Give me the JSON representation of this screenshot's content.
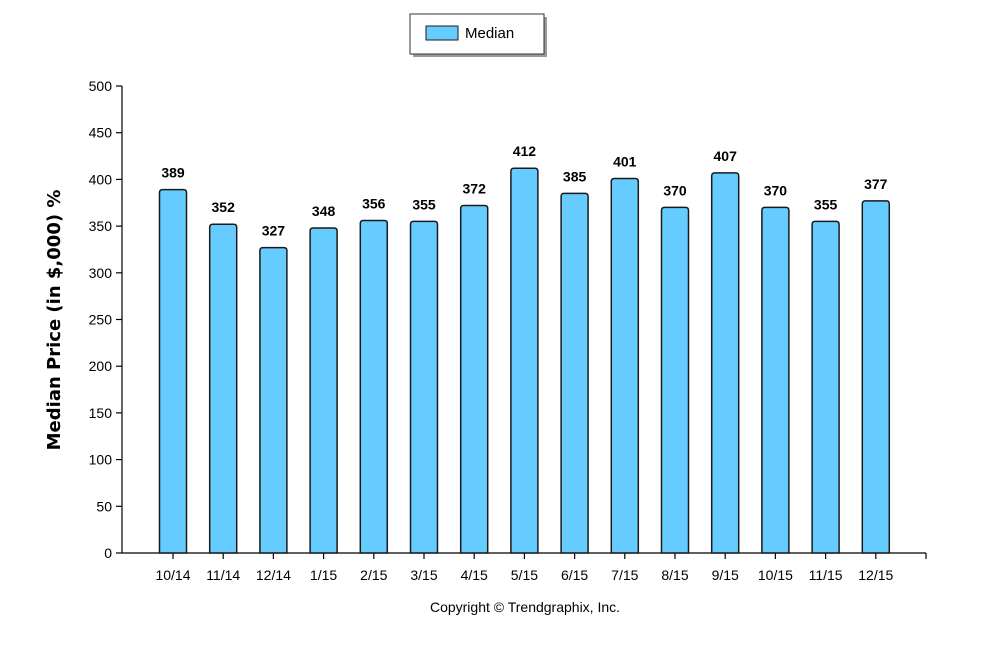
{
  "chart_data": {
    "type": "bar",
    "categories": [
      "10/14",
      "11/14",
      "12/14",
      "1/15",
      "2/15",
      "3/15",
      "4/15",
      "5/15",
      "6/15",
      "7/15",
      "8/15",
      "9/15",
      "10/15",
      "11/15",
      "12/15"
    ],
    "series": [
      {
        "name": "Median",
        "values": [
          389,
          352,
          327,
          348,
          356,
          355,
          372,
          412,
          385,
          401,
          370,
          407,
          370,
          355,
          377
        ]
      }
    ],
    "data_labels": [
      "389",
      "352",
      "327",
      "348",
      "356",
      "355",
      "372",
      "412",
      "385",
      "401",
      "370",
      "407",
      "370",
      "355",
      "377"
    ],
    "ylabel": "Median Price (in $,000) %",
    "xlabel": "",
    "ylim": [
      0,
      500
    ],
    "yticks": [
      0,
      50,
      100,
      150,
      200,
      250,
      300,
      350,
      400,
      450,
      500
    ],
    "grid": false,
    "legend_position": "top-center",
    "bar_color": "#66ccff"
  },
  "legend": {
    "label": "Median"
  },
  "footer": {
    "copyright": "Copyright © Trendgraphix, Inc."
  }
}
